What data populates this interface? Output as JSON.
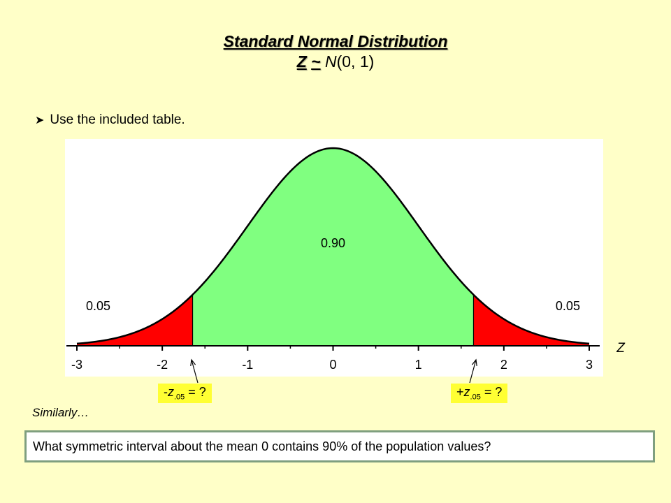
{
  "title": "Standard Normal Distribution",
  "subtitle": {
    "z": "Z",
    "tilde": "~",
    "n": "N",
    "params": "(0, 1)"
  },
  "bullet": "Use the included table.",
  "chart_data": {
    "type": "area",
    "distribution": "standard normal",
    "mean": 0,
    "sd": 1,
    "xlim": [
      -3,
      3
    ],
    "x_ticks": [
      "-3",
      "-2",
      "-1",
      "0",
      "1",
      "2",
      "3"
    ],
    "xlabel": "Z",
    "regions": [
      {
        "from": -3,
        "to": -1.645,
        "color": "#ff0000",
        "label": "0.05"
      },
      {
        "from": -1.645,
        "to": 1.645,
        "color": "#80ff80",
        "label": "0.90"
      },
      {
        "from": 1.645,
        "to": 3,
        "color": "#ff0000",
        "label": "0.05"
      }
    ]
  },
  "callouts": {
    "left": {
      "prefix": "-",
      "z": "z",
      "sub": ".05",
      "suffix": " = ?"
    },
    "right": {
      "prefix": "+",
      "z": "z",
      "sub": ".05",
      "suffix": " = ?"
    }
  },
  "similarly": "Similarly…",
  "question": "What symmetric interval about the mean 0 contains 90% of the population values?"
}
